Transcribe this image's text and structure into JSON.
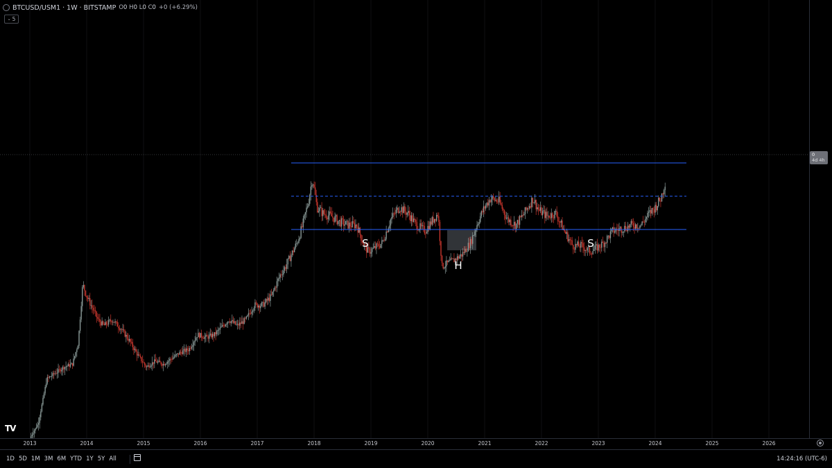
{
  "legend": {
    "symbol": "BTCUSD/USM1 · 1W · BITSTAMP",
    "o_label": "O",
    "o_value": "0",
    "h_label": "H",
    "h_value": "0",
    "l_label": "L",
    "l_value": "0",
    "c_label": "C",
    "c_value": "0",
    "change": "+0 (+6.29%)"
  },
  "collapse_count": "5",
  "price_badge": {
    "value": "0",
    "countdown": "4d 4h"
  },
  "chart_data": {
    "type": "candlestick",
    "symbol": "BTCUSD/USM1",
    "interval": "1W",
    "exchange": "BITSTAMP",
    "x_labels": [
      "2013",
      "2014",
      "2015",
      "2016",
      "2017",
      "2018",
      "2019",
      "2020",
      "2021",
      "2022",
      "2023",
      "2024",
      "2025",
      "2026"
    ],
    "y_range": [
      0,
      1
    ],
    "series_close": [
      [
        2013.0,
        0.0
      ],
      [
        2013.15,
        0.05
      ],
      [
        2013.3,
        0.2
      ],
      [
        2013.45,
        0.22
      ],
      [
        2013.6,
        0.24
      ],
      [
        2013.75,
        0.25
      ],
      [
        2013.85,
        0.32
      ],
      [
        2013.93,
        0.52
      ],
      [
        2014.0,
        0.48
      ],
      [
        2014.1,
        0.44
      ],
      [
        2014.2,
        0.4
      ],
      [
        2014.3,
        0.38
      ],
      [
        2014.45,
        0.4
      ],
      [
        2014.6,
        0.37
      ],
      [
        2014.75,
        0.33
      ],
      [
        2014.9,
        0.28
      ],
      [
        2015.05,
        0.24
      ],
      [
        2015.2,
        0.26
      ],
      [
        2015.35,
        0.25
      ],
      [
        2015.5,
        0.27
      ],
      [
        2015.65,
        0.29
      ],
      [
        2015.8,
        0.3
      ],
      [
        2015.95,
        0.35
      ],
      [
        2016.1,
        0.34
      ],
      [
        2016.25,
        0.35
      ],
      [
        2016.4,
        0.38
      ],
      [
        2016.5,
        0.4
      ],
      [
        2016.65,
        0.38
      ],
      [
        2016.8,
        0.4
      ],
      [
        2016.95,
        0.45
      ],
      [
        2017.1,
        0.45
      ],
      [
        2017.25,
        0.48
      ],
      [
        2017.4,
        0.55
      ],
      [
        2017.5,
        0.58
      ],
      [
        2017.6,
        0.62
      ],
      [
        2017.7,
        0.66
      ],
      [
        2017.8,
        0.72
      ],
      [
        2017.9,
        0.8
      ],
      [
        2017.97,
        0.88
      ],
      [
        2018.05,
        0.78
      ],
      [
        2018.15,
        0.76
      ],
      [
        2018.3,
        0.75
      ],
      [
        2018.45,
        0.73
      ],
      [
        2018.6,
        0.72
      ],
      [
        2018.75,
        0.72
      ],
      [
        2018.88,
        0.65
      ],
      [
        2018.95,
        0.63
      ],
      [
        2019.05,
        0.64
      ],
      [
        2019.2,
        0.66
      ],
      [
        2019.35,
        0.74
      ],
      [
        2019.5,
        0.78
      ],
      [
        2019.65,
        0.76
      ],
      [
        2019.8,
        0.72
      ],
      [
        2019.95,
        0.7
      ],
      [
        2020.1,
        0.74
      ],
      [
        2020.18,
        0.76
      ],
      [
        2020.25,
        0.58
      ],
      [
        2020.35,
        0.59
      ],
      [
        2020.45,
        0.6
      ],
      [
        2020.6,
        0.62
      ],
      [
        2020.75,
        0.66
      ],
      [
        2020.9,
        0.74
      ],
      [
        2021.0,
        0.78
      ],
      [
        2021.1,
        0.81
      ],
      [
        2021.25,
        0.8
      ],
      [
        2021.4,
        0.74
      ],
      [
        2021.55,
        0.72
      ],
      [
        2021.7,
        0.76
      ],
      [
        2021.85,
        0.81
      ],
      [
        2021.95,
        0.77
      ],
      [
        2022.1,
        0.75
      ],
      [
        2022.25,
        0.76
      ],
      [
        2022.4,
        0.7
      ],
      [
        2022.55,
        0.65
      ],
      [
        2022.7,
        0.65
      ],
      [
        2022.85,
        0.63
      ],
      [
        2022.95,
        0.64
      ],
      [
        2023.1,
        0.66
      ],
      [
        2023.25,
        0.7
      ],
      [
        2023.45,
        0.71
      ],
      [
        2023.6,
        0.72
      ],
      [
        2023.75,
        0.72
      ],
      [
        2023.9,
        0.76
      ],
      [
        2024.0,
        0.78
      ],
      [
        2024.1,
        0.81
      ],
      [
        2024.18,
        0.87
      ]
    ],
    "levels": [
      {
        "name": "top-line",
        "style": "solid",
        "color": "#2962ff"
      },
      {
        "name": "mid-line",
        "style": "dashed",
        "color": "#2962ff"
      },
      {
        "name": "bottom-line",
        "style": "solid",
        "color": "#2962ff"
      }
    ],
    "annotations": [
      {
        "text": "S",
        "x": 2018.9
      },
      {
        "text": "H",
        "x": 2020.5
      },
      {
        "text": "S",
        "x": 2022.85
      }
    ],
    "grid": false,
    "up_color": "#8a9a98",
    "down_color": "#c8362d"
  },
  "time_axis_labels": [
    "2013",
    "2014",
    "2015",
    "2016",
    "2017",
    "2018",
    "2019",
    "2020",
    "2021",
    "2022",
    "2023",
    "2024",
    "2025",
    "2026"
  ],
  "ranges": [
    "1D",
    "5D",
    "1M",
    "3M",
    "6M",
    "YTD",
    "1Y",
    "5Y",
    "All"
  ],
  "clock": "14:24:16 (UTC-6)",
  "logo_text": "TV"
}
